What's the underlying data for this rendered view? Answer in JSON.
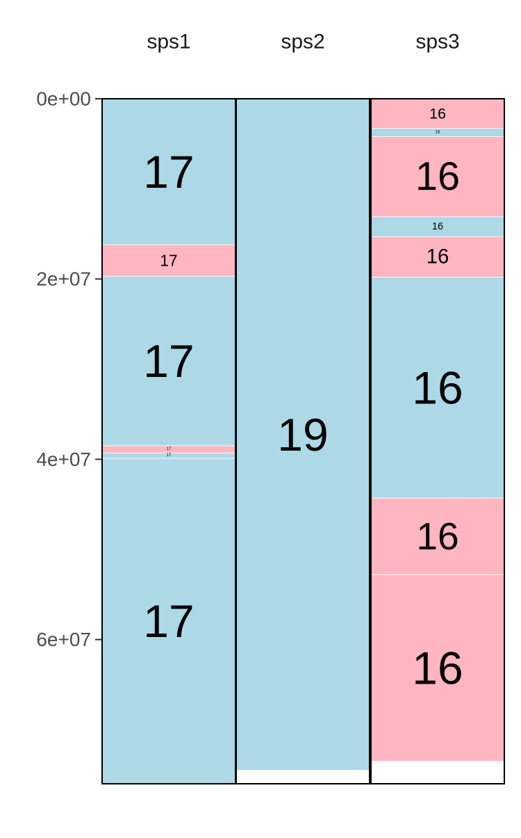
{
  "chart_data": {
    "type": "bar",
    "subtype": "stacked-segment-columns",
    "title": "",
    "xlabel": "",
    "ylabel": "",
    "y_reversed": true,
    "ylim": [
      0,
      76000000
    ],
    "y_ticks": [
      0,
      20000000,
      40000000,
      60000000
    ],
    "y_tick_labels": [
      "0e+00",
      "2e+07",
      "4e+07",
      "6e+07"
    ],
    "grid": false,
    "legend": "none",
    "colors": {
      "blue": "#add8e6",
      "pink": "#ffb6c1"
    },
    "categories": [
      "sps1",
      "sps2",
      "sps3"
    ],
    "columns": [
      {
        "name": "sps1",
        "length": 76000000,
        "segments": [
          {
            "start": 0,
            "end": 16200000,
            "color": "blue",
            "label": "17"
          },
          {
            "start": 16200000,
            "end": 19700000,
            "color": "pink",
            "label": "17"
          },
          {
            "start": 19700000,
            "end": 38500000,
            "color": "blue",
            "label": "17"
          },
          {
            "start": 38500000,
            "end": 39300000,
            "color": "pink",
            "label": "17"
          },
          {
            "start": 39300000,
            "end": 39900000,
            "color": "blue",
            "label": "17"
          },
          {
            "start": 39900000,
            "end": 76000000,
            "color": "blue",
            "label": "17"
          }
        ]
      },
      {
        "name": "sps2",
        "length": 76000000,
        "segments": [
          {
            "start": 0,
            "end": 74500000,
            "color": "blue",
            "label": "19"
          }
        ]
      },
      {
        "name": "sps3",
        "length": 76000000,
        "segments": [
          {
            "start": 0,
            "end": 3300000,
            "color": "pink",
            "label": "16"
          },
          {
            "start": 3300000,
            "end": 4200000,
            "color": "blue",
            "label": "16"
          },
          {
            "start": 4200000,
            "end": 13100000,
            "color": "pink",
            "label": "16"
          },
          {
            "start": 13100000,
            "end": 15300000,
            "color": "blue",
            "label": "16"
          },
          {
            "start": 15300000,
            "end": 19800000,
            "color": "pink",
            "label": "16"
          },
          {
            "start": 19800000,
            "end": 44300000,
            "color": "blue",
            "label": "16"
          },
          {
            "start": 44300000,
            "end": 52800000,
            "color": "pink",
            "label": "16"
          },
          {
            "start": 52800000,
            "end": 73500000,
            "color": "pink",
            "label": "16"
          }
        ]
      }
    ]
  }
}
